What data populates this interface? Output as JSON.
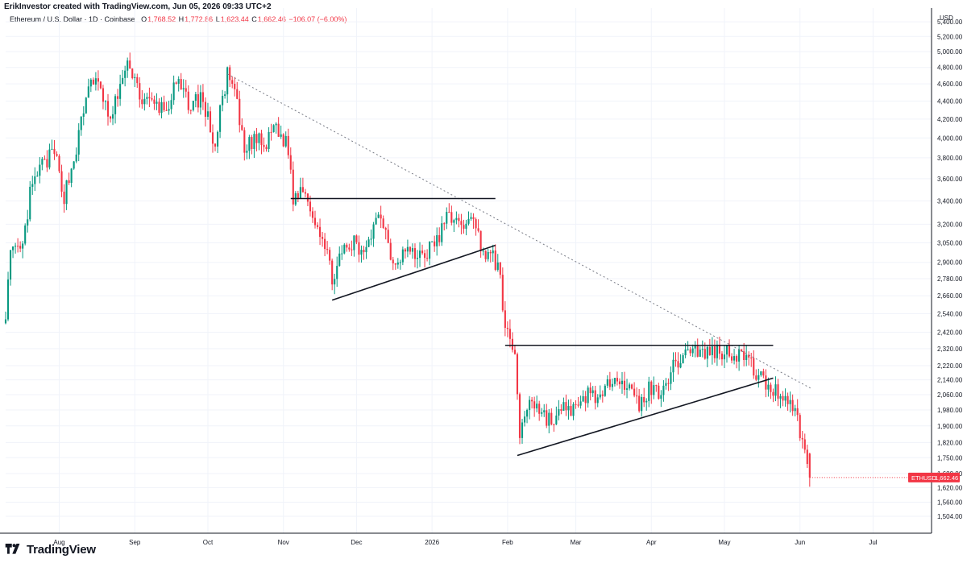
{
  "header": {
    "credit": "ErikInvestor created with TradingView.com, Jun 05, 2026 09:33 UTC+2"
  },
  "legend": {
    "symbol": "Ethereum / U.S. Dollar · 1D · Coinbase",
    "open_label": "O",
    "open": "1,768.52",
    "high_label": "H",
    "high": "1,772.86",
    "low_label": "L",
    "low": "1,623.44",
    "close_label": "C",
    "close": "1,662.46",
    "change": "−106.07 (−6.00%)"
  },
  "footer": {
    "brand": "TradingView"
  },
  "colors": {
    "up": "#089981",
    "down": "#f23645",
    "grid": "#f0f3fa",
    "line": "#131722",
    "dotted": "#787b86"
  },
  "chart_data": {
    "type": "candlestick",
    "symbol": "ETHUSD",
    "timeframe": "1D",
    "exchange": "Coinbase",
    "y_scale": "log",
    "y_axis_unit": "USD",
    "y_ticks": [
      5400,
      5200,
      5000,
      4800,
      4600,
      4400,
      4200,
      4000,
      3800,
      3600,
      3400,
      3200,
      3050,
      2900,
      2780,
      2660,
      2540,
      2420,
      2320,
      2220,
      2140,
      2060,
      1980,
      1900,
      1820,
      1750,
      1680,
      1620,
      1560,
      1504
    ],
    "y_tick_labels": [
      "5,400.00",
      "5,200.00",
      "5,000.00",
      "4,800.00",
      "4,600.00",
      "4,400.00",
      "4,200.00",
      "4,000.00",
      "3,800.00",
      "3,600.00",
      "3,400.00",
      "3,200.00",
      "3,050.00",
      "2,900.00",
      "2,780.00",
      "2,660.00",
      "2,540.00",
      "2,420.00",
      "2,320.00",
      "2,220.00",
      "2,140.00",
      "2,060.00",
      "1,980.00",
      "1,900.00",
      "1,820.00",
      "1,750.00",
      "1,680.00",
      "1,620.00",
      "1,560.00",
      "1,504.00"
    ],
    "x_ticks": [
      {
        "label": "Aug",
        "date": "2025-08-01"
      },
      {
        "label": "Sep",
        "date": "2025-09-01"
      },
      {
        "label": "Oct",
        "date": "2025-10-01"
      },
      {
        "label": "Nov",
        "date": "2025-11-01"
      },
      {
        "label": "Dec",
        "date": "2025-12-01"
      },
      {
        "label": "2026",
        "date": "2026-01-01"
      },
      {
        "label": "Feb",
        "date": "2026-02-01"
      },
      {
        "label": "Mar",
        "date": "2026-03-01"
      },
      {
        "label": "Apr",
        "date": "2026-04-01"
      },
      {
        "label": "May",
        "date": "2026-05-01"
      },
      {
        "label": "Jun",
        "date": "2026-06-01"
      },
      {
        "label": "Jul",
        "date": "2026-07-01"
      }
    ],
    "last_price": {
      "label": "ETHUSD",
      "value": "1,662.46"
    },
    "close_path": [
      [
        "2025-07-10",
        2560
      ],
      [
        "2025-07-12",
        2950
      ],
      [
        "2025-07-17",
        3000
      ],
      [
        "2025-07-20",
        3450
      ],
      [
        "2025-07-24",
        3700
      ],
      [
        "2025-07-30",
        3850
      ],
      [
        "2025-08-03",
        3450
      ],
      [
        "2025-08-07",
        3780
      ],
      [
        "2025-08-11",
        4280
      ],
      [
        "2025-08-14",
        4700
      ],
      [
        "2025-08-19",
        4450
      ],
      [
        "2025-08-22",
        4150
      ],
      [
        "2025-08-26",
        4600
      ],
      [
        "2025-08-30",
        4850
      ],
      [
        "2025-09-04",
        4400
      ],
      [
        "2025-09-10",
        4350
      ],
      [
        "2025-09-14",
        4300
      ],
      [
        "2025-09-18",
        4600
      ],
      [
        "2025-09-24",
        4350
      ],
      [
        "2025-09-28",
        4450
      ],
      [
        "2025-10-01",
        4200
      ],
      [
        "2025-10-04",
        3900
      ],
      [
        "2025-10-07",
        4450
      ],
      [
        "2025-10-09",
        4700
      ],
      [
        "2025-10-12",
        4500
      ],
      [
        "2025-10-16",
        3850
      ],
      [
        "2025-10-20",
        4000
      ],
      [
        "2025-10-25",
        3900
      ],
      [
        "2025-10-28",
        4150
      ],
      [
        "2025-11-03",
        3900
      ],
      [
        "2025-11-05",
        3400
      ],
      [
        "2025-11-09",
        3550
      ],
      [
        "2025-11-12",
        3350
      ],
      [
        "2025-11-16",
        3150
      ],
      [
        "2025-11-21",
        2800
      ],
      [
        "2025-11-25",
        2950
      ],
      [
        "2025-11-30",
        3050
      ],
      [
        "2025-12-03",
        2950
      ],
      [
        "2025-12-08",
        3200
      ],
      [
        "2025-12-11",
        3300
      ],
      [
        "2025-12-16",
        2900
      ],
      [
        "2025-12-21",
        3000
      ],
      [
        "2025-12-25",
        2950
      ],
      [
        "2025-12-30",
        2980
      ],
      [
        "2026-01-04",
        3100
      ],
      [
        "2026-01-08",
        3300
      ],
      [
        "2026-01-13",
        3150
      ],
      [
        "2026-01-16",
        3300
      ],
      [
        "2026-01-20",
        3100
      ],
      [
        "2026-01-23",
        2960
      ],
      [
        "2026-01-26",
        2930
      ],
      [
        "2026-01-29",
        2820
      ],
      [
        "2026-01-31",
        2420
      ],
      [
        "2026-02-04",
        2300
      ],
      [
        "2026-02-06",
        1850
      ],
      [
        "2026-02-10",
        2050
      ],
      [
        "2026-02-16",
        1950
      ],
      [
        "2026-02-20",
        1920
      ],
      [
        "2026-02-25",
        2000
      ],
      [
        "2026-03-02",
        1970
      ],
      [
        "2026-03-06",
        2080
      ],
      [
        "2026-03-12",
        2030
      ],
      [
        "2026-03-17",
        2200
      ],
      [
        "2026-03-22",
        2100
      ],
      [
        "2026-03-27",
        2000
      ],
      [
        "2026-03-31",
        2090
      ],
      [
        "2026-04-04",
        2080
      ],
      [
        "2026-04-08",
        2160
      ],
      [
        "2026-04-12",
        2250
      ],
      [
        "2026-04-17",
        2330
      ],
      [
        "2026-04-22",
        2290
      ],
      [
        "2026-04-27",
        2310
      ],
      [
        "2026-05-03",
        2300
      ],
      [
        "2026-05-09",
        2280
      ],
      [
        "2026-05-14",
        2180
      ],
      [
        "2026-05-19",
        2100
      ],
      [
        "2026-05-24",
        2070
      ],
      [
        "2026-05-29",
        2010
      ],
      [
        "2026-06-01",
        1880
      ],
      [
        "2026-06-03",
        1768
      ],
      [
        "2026-06-05",
        1662
      ]
    ],
    "last_candle": {
      "date": "2026-06-05",
      "open": 1768.52,
      "high": 1772.86,
      "low": 1623.44,
      "close": 1662.46
    },
    "trendlines": [
      {
        "style": "dotted",
        "from": [
          "2025-10-09",
          4720
        ],
        "to": [
          "2026-06-06",
          2090
        ]
      },
      {
        "style": "solid",
        "from": [
          "2025-11-04",
          3420
        ],
        "to": [
          "2026-01-27",
          3420
        ]
      },
      {
        "style": "solid",
        "from": [
          "2025-11-21",
          2630
        ],
        "to": [
          "2026-01-27",
          3030
        ]
      },
      {
        "style": "solid",
        "from": [
          "2026-01-31",
          2340
        ],
        "to": [
          "2026-05-21",
          2340
        ]
      },
      {
        "style": "solid",
        "from": [
          "2026-02-05",
          1760
        ],
        "to": [
          "2026-05-21",
          2150
        ]
      }
    ]
  }
}
